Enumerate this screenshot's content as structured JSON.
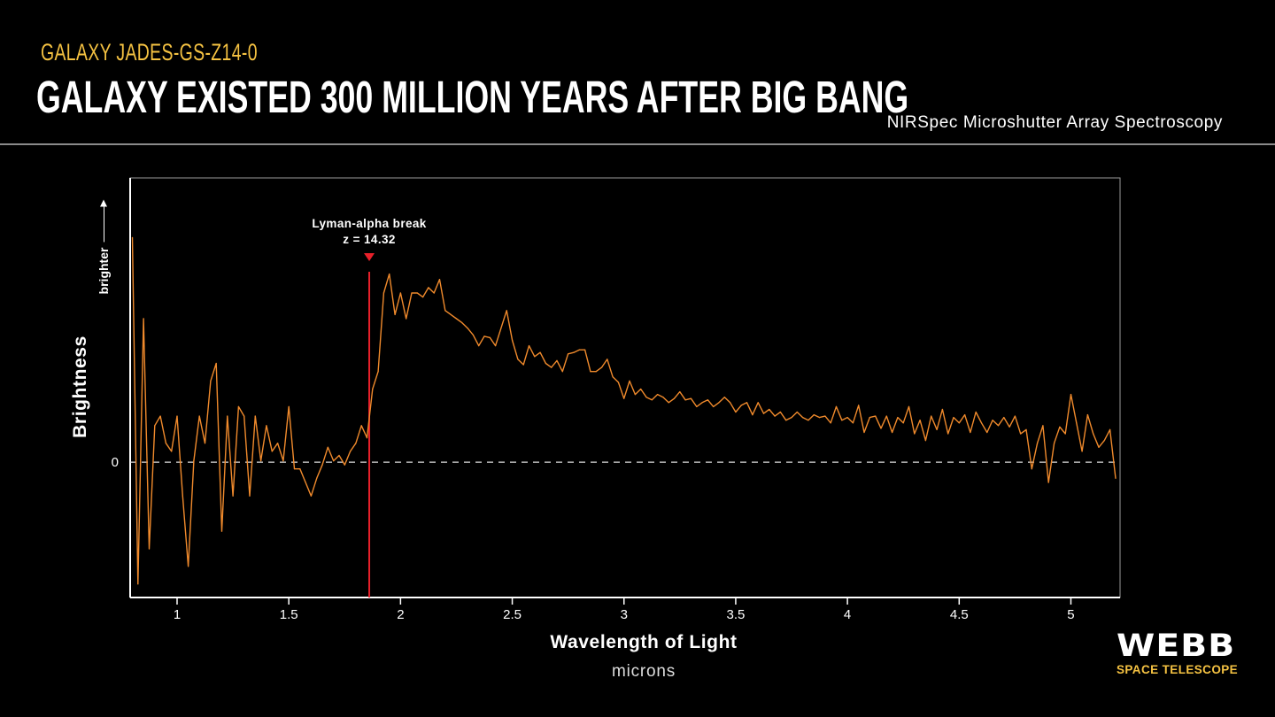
{
  "header": {
    "kicker": "GALAXY JADES-GS-Z14-0",
    "title": "GALAXY EXISTED 300 MILLION YEARS AFTER BIG BANG",
    "instrument": "NIRSpec Microshutter Array Spectroscopy"
  },
  "logo": {
    "name": "WEBB",
    "subtitle": "SPACE TELESCOPE"
  },
  "colors": {
    "background": "#000000",
    "spectrum": "#f08a2c",
    "break_line": "#e8202a",
    "kicker": "#f5c242",
    "axis": "#ffffff"
  },
  "chart_data": {
    "type": "line",
    "xlabel": "Wavelength of Light",
    "xunit": "microns",
    "ylabel": "Brightness",
    "y_direction_label": "brighter",
    "xlim": [
      0.79,
      5.22
    ],
    "ylim": [
      -1.0,
      2.1
    ],
    "x_ticks": [
      1,
      1.5,
      2,
      2.5,
      3,
      3.5,
      4,
      4.5,
      5
    ],
    "x_tick_labels": [
      "1",
      "1.5",
      "2",
      "2.5",
      "3",
      "3.5",
      "4",
      "4.5",
      "5"
    ],
    "y_ticks": [
      0
    ],
    "y_tick_labels": [
      "0"
    ],
    "zero_line": "dashed",
    "grid": false,
    "annotation": {
      "label": "Lyman-alpha break",
      "value_label": "z = 14.32",
      "x": 1.86,
      "marker": "red-triangle"
    },
    "series": [
      {
        "x": [
          0.8,
          0.825,
          0.85,
          0.875,
          0.9,
          0.925,
          0.95,
          0.975,
          1.0,
          1.025,
          1.05,
          1.075,
          1.1,
          1.125,
          1.15,
          1.175,
          1.2,
          1.225,
          1.25,
          1.275,
          1.3,
          1.325,
          1.35,
          1.375,
          1.4,
          1.425,
          1.45,
          1.475,
          1.5,
          1.525,
          1.55,
          1.575,
          1.6,
          1.625,
          1.65,
          1.675,
          1.7,
          1.725,
          1.75,
          1.775,
          1.8,
          1.825,
          1.85,
          1.875,
          1.9,
          1.925,
          1.95,
          1.975,
          2.0,
          2.025,
          2.05,
          2.075,
          2.1,
          2.125,
          2.15,
          2.175,
          2.2,
          2.225,
          2.25,
          2.275,
          2.3,
          2.325,
          2.35,
          2.375,
          2.4,
          2.425,
          2.45,
          2.475,
          2.5,
          2.525,
          2.55,
          2.575,
          2.6,
          2.625,
          2.65,
          2.675,
          2.7,
          2.725,
          2.75,
          2.775,
          2.8,
          2.825,
          2.85,
          2.875,
          2.9,
          2.925,
          2.95,
          2.975,
          3.0,
          3.025,
          3.05,
          3.075,
          3.1,
          3.125,
          3.15,
          3.175,
          3.2,
          3.225,
          3.25,
          3.275,
          3.3,
          3.325,
          3.35,
          3.375,
          3.4,
          3.425,
          3.45,
          3.475,
          3.5,
          3.525,
          3.55,
          3.575,
          3.6,
          3.625,
          3.65,
          3.675,
          3.7,
          3.725,
          3.75,
          3.775,
          3.8,
          3.825,
          3.85,
          3.875,
          3.9,
          3.925,
          3.95,
          3.975,
          4.0,
          4.025,
          4.05,
          4.075,
          4.1,
          4.125,
          4.15,
          4.175,
          4.2,
          4.225,
          4.25,
          4.275,
          4.3,
          4.325,
          4.35,
          4.375,
          4.4,
          4.425,
          4.45,
          4.475,
          4.5,
          4.525,
          4.55,
          4.575,
          4.6,
          4.625,
          4.65,
          4.675,
          4.7,
          4.725,
          4.75,
          4.775,
          4.8,
          4.825,
          4.85,
          4.875,
          4.9,
          4.925,
          4.95,
          4.975,
          5.0,
          5.025,
          5.05,
          5.075,
          5.1,
          5.125,
          5.15,
          5.175,
          5.2
        ],
        "y": [
          1.66,
          -0.9,
          1.06,
          -0.64,
          0.27,
          0.34,
          0.14,
          0.08,
          0.34,
          -0.25,
          -0.77,
          0.01,
          0.34,
          0.14,
          0.6,
          0.73,
          -0.51,
          0.34,
          -0.25,
          0.41,
          0.34,
          -0.25,
          0.34,
          0.01,
          0.27,
          0.08,
          0.14,
          0.01,
          0.41,
          -0.05,
          -0.05,
          -0.15,
          -0.25,
          -0.12,
          -0.02,
          0.11,
          0.01,
          0.05,
          -0.02,
          0.08,
          0.14,
          0.27,
          0.18,
          0.54,
          0.67,
          1.25,
          1.39,
          1.09,
          1.25,
          1.06,
          1.25,
          1.25,
          1.22,
          1.29,
          1.25,
          1.35,
          1.12,
          1.09,
          1.06,
          1.03,
          0.99,
          0.94,
          0.86,
          0.93,
          0.92,
          0.86,
          0.99,
          1.12,
          0.9,
          0.76,
          0.72,
          0.86,
          0.78,
          0.81,
          0.73,
          0.7,
          0.75,
          0.67,
          0.8,
          0.81,
          0.83,
          0.83,
          0.67,
          0.67,
          0.7,
          0.76,
          0.63,
          0.59,
          0.47,
          0.6,
          0.5,
          0.54,
          0.48,
          0.46,
          0.5,
          0.48,
          0.44,
          0.47,
          0.52,
          0.46,
          0.47,
          0.41,
          0.44,
          0.46,
          0.41,
          0.44,
          0.48,
          0.44,
          0.37,
          0.42,
          0.44,
          0.35,
          0.44,
          0.36,
          0.39,
          0.34,
          0.37,
          0.31,
          0.33,
          0.37,
          0.33,
          0.31,
          0.35,
          0.33,
          0.34,
          0.29,
          0.41,
          0.31,
          0.33,
          0.29,
          0.42,
          0.22,
          0.33,
          0.34,
          0.25,
          0.34,
          0.22,
          0.33,
          0.29,
          0.41,
          0.21,
          0.31,
          0.16,
          0.34,
          0.24,
          0.39,
          0.21,
          0.33,
          0.29,
          0.35,
          0.22,
          0.37,
          0.29,
          0.22,
          0.31,
          0.27,
          0.33,
          0.26,
          0.34,
          0.21,
          0.24,
          -0.05,
          0.14,
          0.27,
          -0.15,
          0.14,
          0.26,
          0.21,
          0.5,
          0.29,
          0.08,
          0.35,
          0.21,
          0.11,
          0.16,
          0.24,
          -0.12
        ]
      }
    ]
  }
}
